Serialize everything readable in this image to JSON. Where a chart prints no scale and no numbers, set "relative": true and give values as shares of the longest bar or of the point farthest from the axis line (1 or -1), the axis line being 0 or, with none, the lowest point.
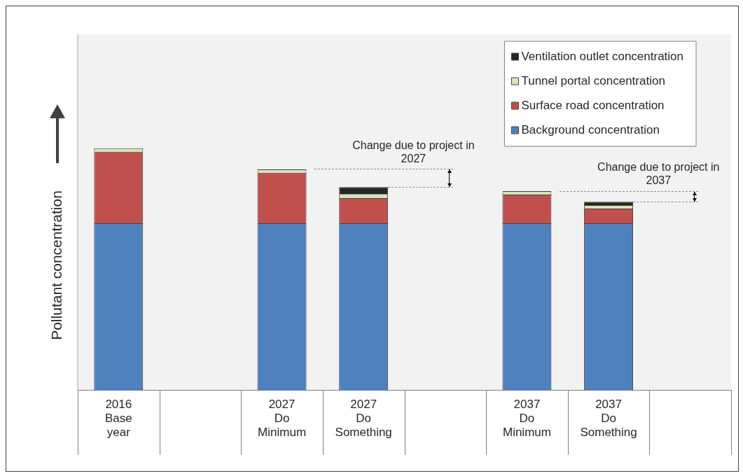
{
  "chart_data": {
    "type": "bar",
    "stacked": true,
    "relative": true,
    "ylabel": "Pollutant concentration",
    "legend": "top right",
    "categories": [
      "2016 Base year",
      null,
      "2027 Do Minimum",
      "2027 Do Something",
      null,
      "2037 Do Minimum",
      "2037 Do Something",
      null
    ],
    "series": [
      {
        "name": "Background concentration",
        "color": "#4f81bd",
        "values": [
          0.69,
          null,
          0.69,
          0.69,
          null,
          0.69,
          0.69,
          null
        ]
      },
      {
        "name": "Surface road concentration",
        "color": "#c0504d",
        "values": [
          0.296,
          null,
          0.209,
          0.104,
          null,
          0.119,
          0.061,
          null
        ]
      },
      {
        "name": "Tunnel portal concentration",
        "color": "#d7e4bd",
        "values": [
          0.014,
          null,
          0.014,
          0.017,
          null,
          0.014,
          0.014,
          null
        ]
      },
      {
        "name": "Ventilation outlet concentration",
        "color": "#262626",
        "values": [
          null,
          null,
          null,
          0.029,
          null,
          null,
          0.014,
          null
        ]
      }
    ],
    "annotations": [
      "Change due to project in 2027",
      "Change due to project in 2037"
    ]
  }
}
